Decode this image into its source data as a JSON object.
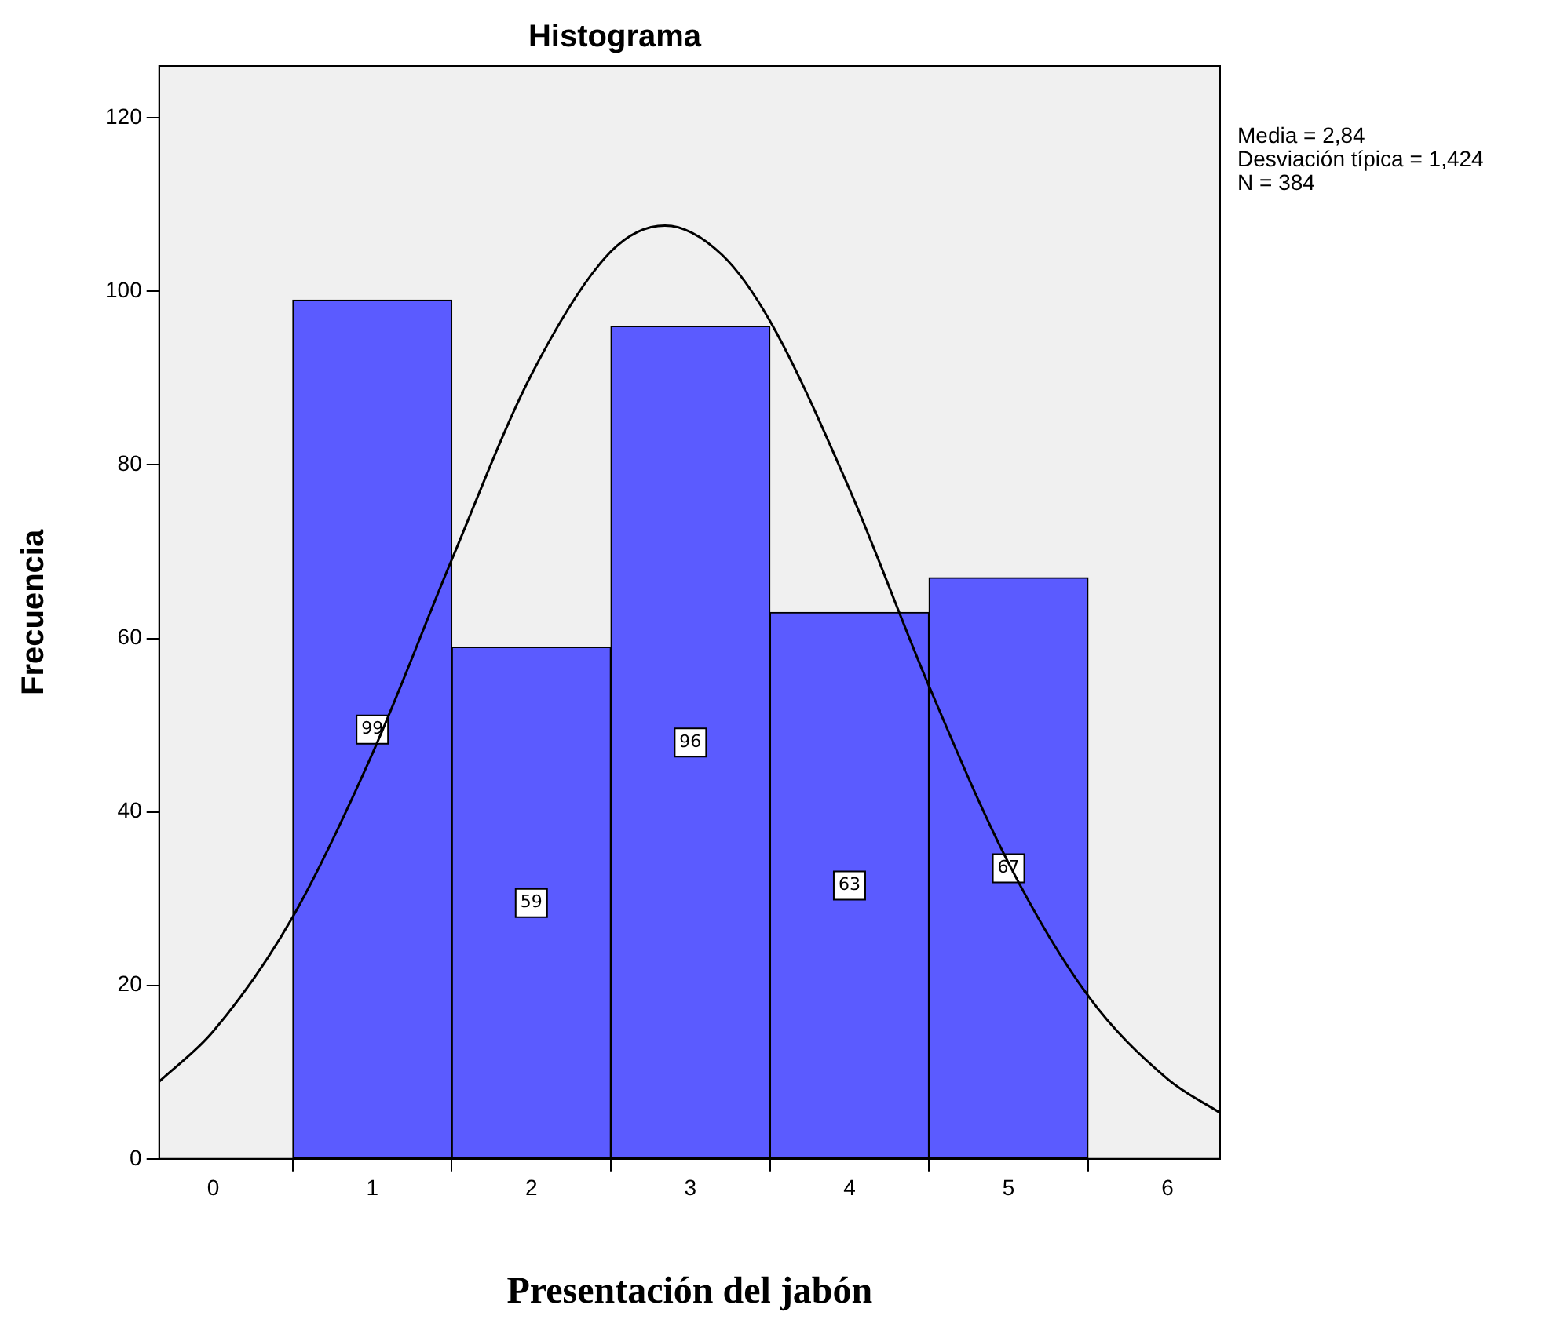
{
  "chart_data": {
    "type": "histogram",
    "title": "Histograma",
    "xlabel": "Presentación del jabón",
    "ylabel": "Frecuencia",
    "bins": [
      0.5,
      1.5,
      2.5,
      3.5,
      4.5,
      5.5
    ],
    "values": [
      99,
      59,
      96,
      63,
      67
    ],
    "color": "#5b5bff",
    "value_labels": [
      "99",
      "59",
      "96",
      "63",
      "67"
    ],
    "series": [
      {
        "type": "line",
        "color": "#000000",
        "x": [
          -0.34,
          0,
          0.5,
          1,
          1.5,
          2,
          2.5,
          2.84,
          3.2,
          3.5,
          4,
          4.5,
          5,
          5.5,
          6,
          6.33
        ],
        "values": [
          8.9,
          14.7,
          27.9,
          46.7,
          69.1,
          90.4,
          104.6,
          107.6,
          104.2,
          96.6,
          77.2,
          54.5,
          34.1,
          18.8,
          9.2,
          5.3
        ]
      }
    ],
    "xlim": [
      -0.34,
      6.33
    ],
    "xticks": [
      0,
      1,
      2,
      3,
      4,
      5,
      6
    ],
    "ylim": [
      0,
      126
    ],
    "yticks": [
      0,
      20,
      40,
      60,
      80,
      100,
      120
    ],
    "grid": false,
    "legend": false,
    "marker": "none",
    "line_style": "solid",
    "annotations": [
      "Media = 2,84",
      "Desviación típica = 1,424",
      "N = 384"
    ]
  }
}
